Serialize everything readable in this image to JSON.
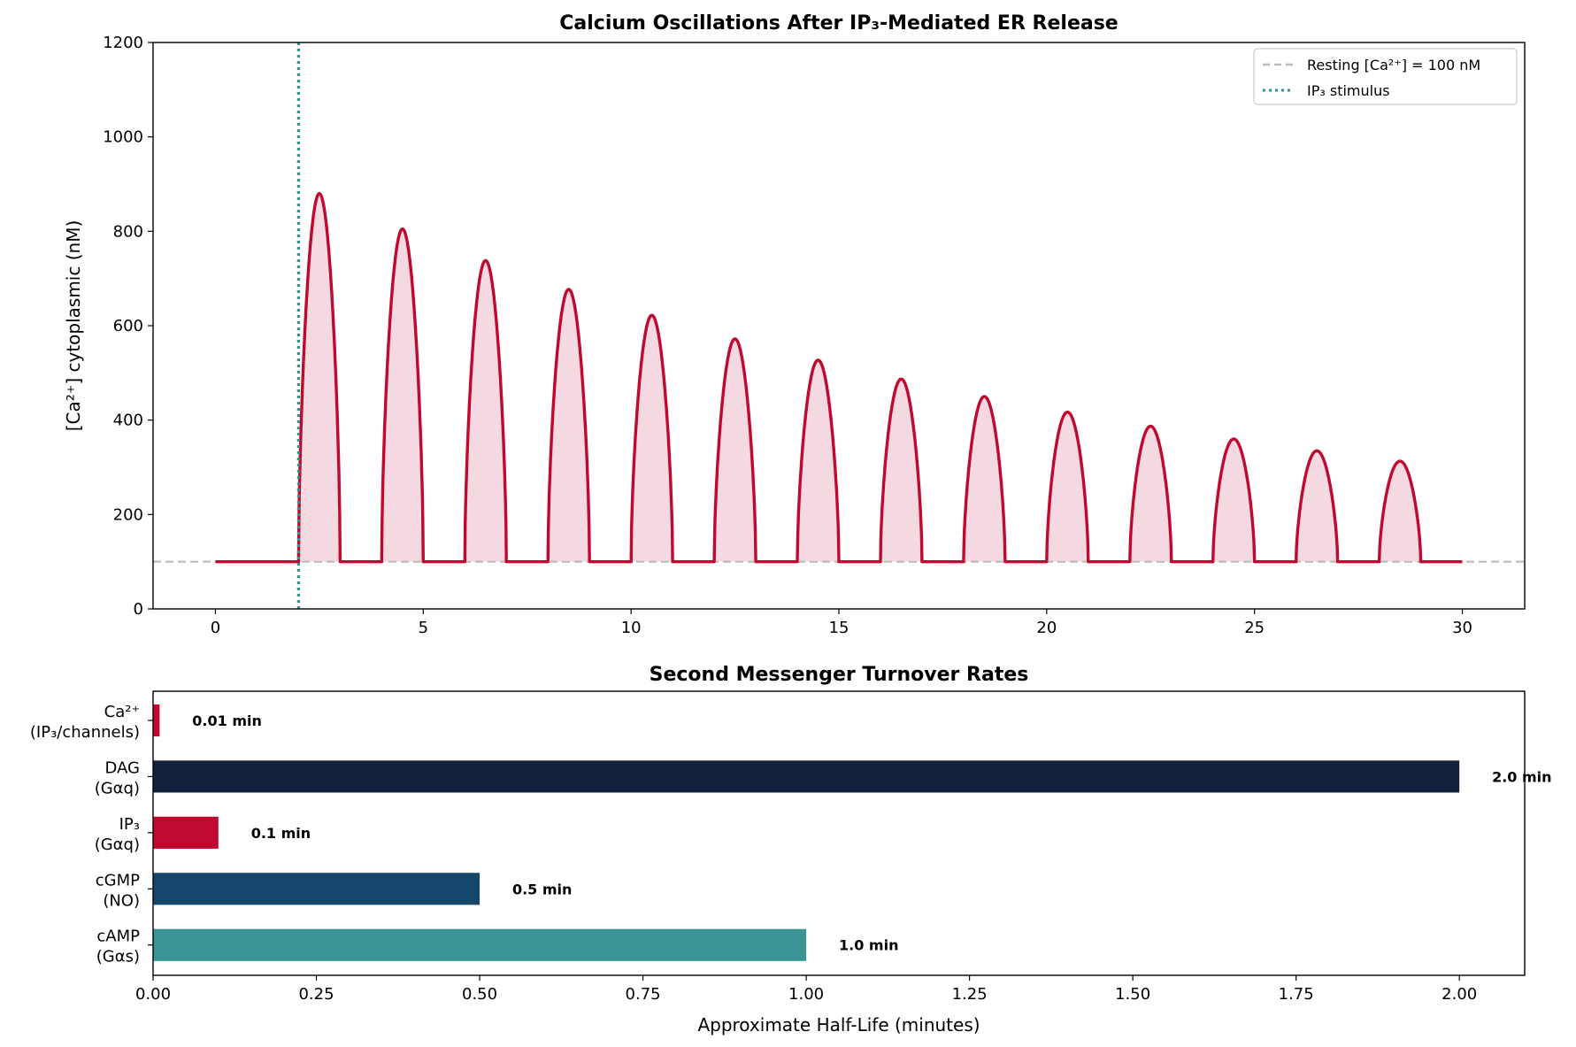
{
  "chart_data": [
    {
      "type": "line",
      "title": "Calcium Oscillations After IP₃-Mediated ER Release",
      "xlabel": "",
      "ylabel": "[Ca²⁺] cytoplasmic (nM)",
      "xlim": [
        -1.5,
        31.5
      ],
      "ylim": [
        0,
        1200
      ],
      "xticks": [
        0,
        5,
        10,
        15,
        20,
        25,
        30
      ],
      "yticks": [
        0,
        200,
        400,
        600,
        800,
        1000,
        1200
      ],
      "baseline": 100,
      "stimulus_time": 2,
      "pulse_duration": 1,
      "peak_times": [
        2.5,
        4.5,
        6.5,
        8.5,
        10.5,
        12.5,
        14.5,
        16.5,
        18.5,
        20.5,
        22.5,
        24.5,
        26.5,
        28.5
      ],
      "peak_values": [
        880,
        805,
        738,
        677,
        622,
        572,
        527,
        487,
        450,
        417,
        387,
        360,
        335,
        313
      ],
      "x_end": 30,
      "legend": {
        "placement": "top-right",
        "entries": [
          "Resting [Ca²⁺] = 100 nM",
          "IP₃ stimulus"
        ]
      },
      "colors": {
        "line": "#c0092f",
        "fill": "#f5d9e0",
        "resting": "#bbbbbb",
        "stimulus": "#2a9490"
      }
    },
    {
      "type": "bar",
      "orientation": "horizontal",
      "title": "Second Messenger Turnover Rates",
      "xlabel": "Approximate Half-Life (minutes)",
      "xlim": [
        0,
        2.1
      ],
      "xticks": [
        "0.00",
        "0.25",
        "0.50",
        "0.75",
        "1.00",
        "1.25",
        "1.50",
        "1.75",
        "2.00"
      ],
      "categories": [
        {
          "line1": "cAMP",
          "line2": "(Gαs)"
        },
        {
          "line1": "cGMP",
          "line2": "(NO)"
        },
        {
          "line1": "IP₃",
          "line2": "(Gαq)"
        },
        {
          "line1": "DAG",
          "line2": "(Gαq)"
        },
        {
          "line1": "Ca²⁺",
          "line2": "(IP₃/channels)"
        }
      ],
      "values": [
        1.0,
        0.5,
        0.1,
        2.0,
        0.01
      ],
      "value_labels": [
        "1.0 min",
        "0.5 min",
        "0.1 min",
        "2.0 min",
        "0.01 min"
      ],
      "colors": [
        "#3b9597",
        "#16466a",
        "#c0092f",
        "#14213d",
        "#c0092f"
      ]
    }
  ]
}
